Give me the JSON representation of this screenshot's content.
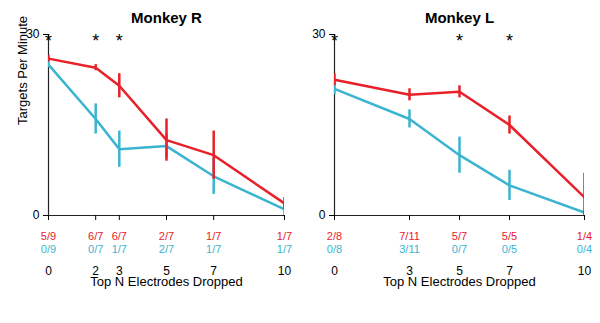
{
  "chart_data": [
    {
      "type": "line",
      "title": "Monkey R",
      "xlabel": "Top N Electrodes Dropped",
      "ylabel": "Targets Per Minute",
      "x": [
        0,
        2,
        3,
        5,
        7,
        10
      ],
      "xlim": [
        0,
        10
      ],
      "xticks": [
        0,
        2,
        3,
        5,
        7,
        10
      ],
      "ylim": [
        0,
        30
      ],
      "yticks": [
        0,
        30
      ],
      "series": [
        {
          "color": "#e8202a",
          "values": [
            26,
            24.5,
            21.5,
            12.5,
            10,
            2
          ],
          "errors": [
            0.5,
            0.5,
            2,
            3.5,
            4,
            1
          ],
          "labels": [
            "5/9",
            "6/7",
            "6/7",
            "2/7",
            "1/7",
            "1/7"
          ]
        },
        {
          "color": "#3ab4d0",
          "values": [
            25,
            16,
            11,
            11.5,
            6.5,
            1
          ],
          "errors": [
            0.5,
            2.5,
            3,
            2,
            3,
            1
          ],
          "labels": [
            "0/9",
            "0/7",
            "1/7",
            "2/7",
            "1/7",
            "1/7"
          ]
        }
      ],
      "annotations": [
        {
          "text": "*",
          "x": [
            0,
            2,
            3
          ]
        }
      ]
    },
    {
      "type": "line",
      "title": "Monkey L",
      "xlabel": "Top N Electrodes Dropped",
      "x": [
        0,
        3,
        5,
        7,
        10
      ],
      "xlim": [
        0,
        10
      ],
      "xticks": [
        0,
        3,
        5,
        7,
        10
      ],
      "ylim": [
        0,
        30
      ],
      "yticks": [
        0,
        30
      ],
      "series": [
        {
          "color": "#e8202a",
          "values": [
            22.5,
            20,
            20.5,
            15,
            3
          ],
          "errors": [
            1,
            1,
            1,
            1.5,
            4
          ],
          "labels": [
            "2/8",
            "7/11",
            "5/7",
            "5/5",
            "1/4"
          ]
        },
        {
          "color": "#3ab4d0",
          "values": [
            21,
            16,
            10,
            5,
            0.5
          ],
          "errors": [
            1,
            1.5,
            3,
            2.5,
            0.5
          ],
          "labels": [
            "0/8",
            "3/11",
            "0/7",
            "0/5",
            "0/4"
          ]
        }
      ],
      "annotations": [
        {
          "text": "*",
          "x": [
            0,
            5,
            7
          ]
        }
      ]
    }
  ]
}
